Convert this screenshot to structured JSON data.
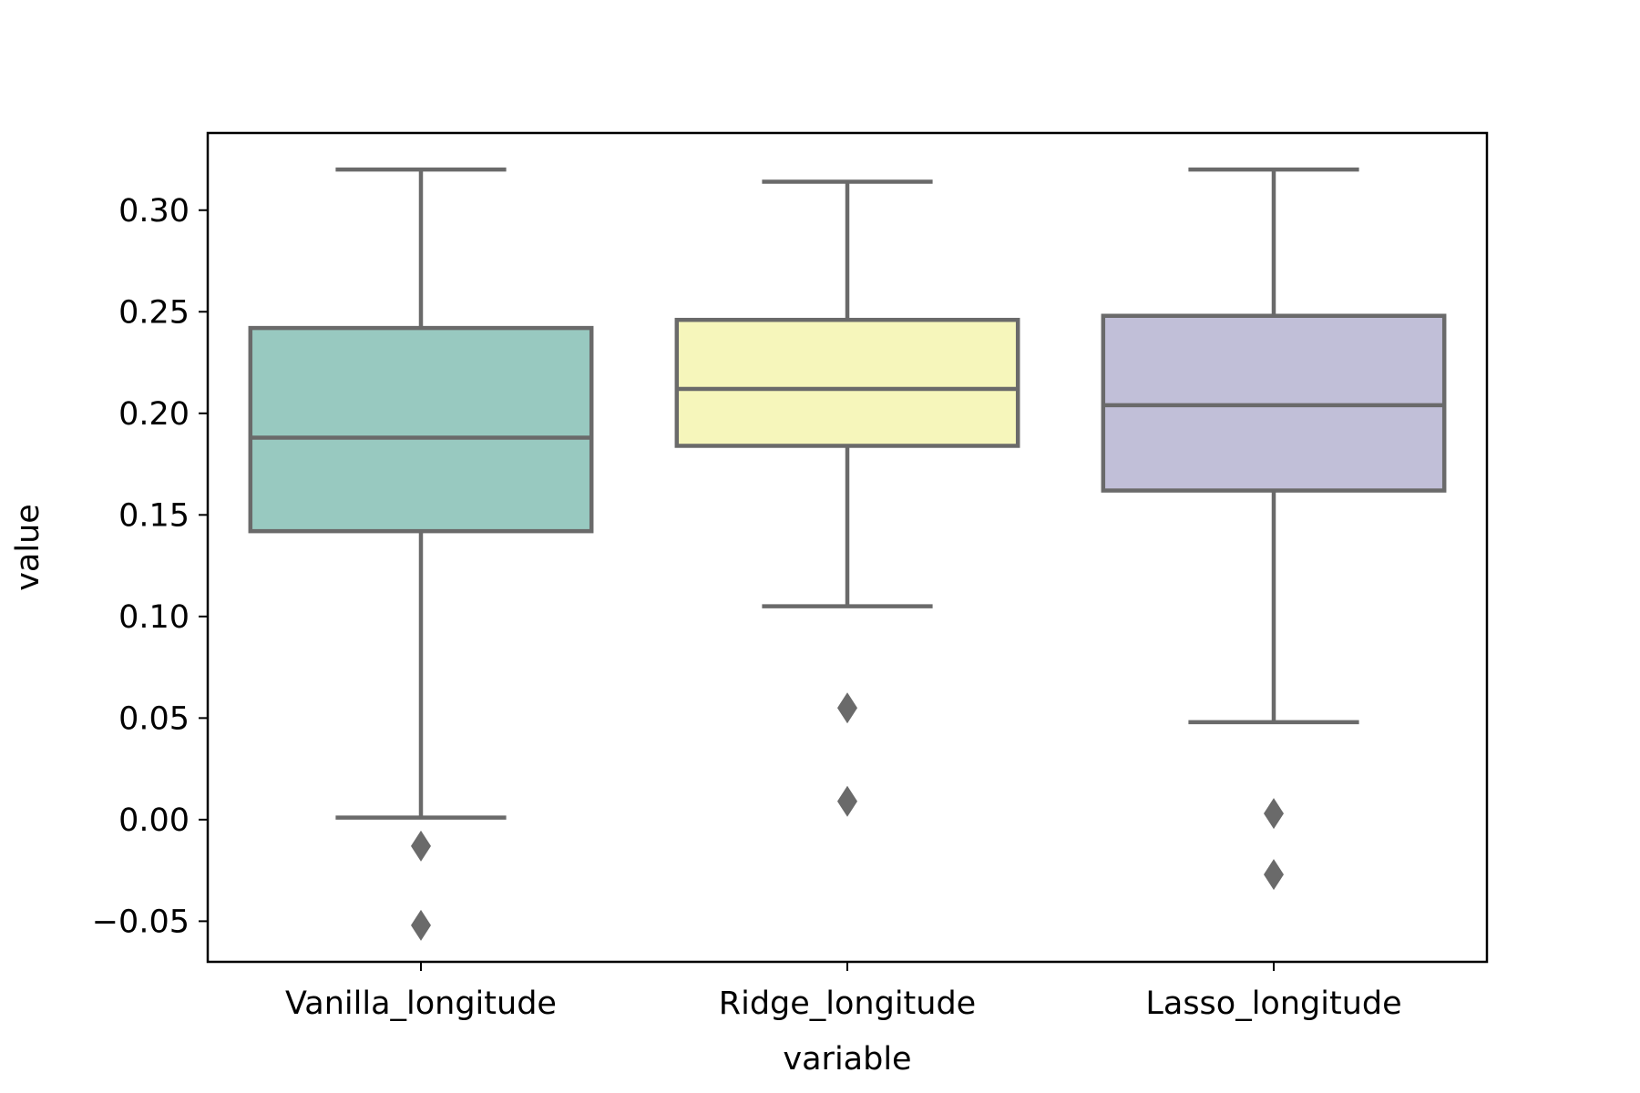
{
  "chart_data": {
    "type": "boxplot",
    "title": "",
    "xlabel": "variable",
    "ylabel": "value",
    "ylim": [
      -0.07,
      0.338
    ],
    "yticks": [
      -0.05,
      0.0,
      0.05,
      0.1,
      0.15,
      0.2,
      0.25,
      0.3
    ],
    "ytick_labels": [
      "−0.05",
      "0.00",
      "0.05",
      "0.10",
      "0.15",
      "0.20",
      "0.25",
      "0.30"
    ],
    "grid": false,
    "categories": [
      "Vanilla_longitude",
      "Ridge_longitude",
      "Lasso_longitude"
    ],
    "series": [
      {
        "category": "Vanilla_longitude",
        "color": "#98c9c0",
        "whisker_low": 0.001,
        "q1": 0.142,
        "median": 0.188,
        "q3": 0.242,
        "whisker_high": 0.32,
        "outliers": [
          -0.013,
          -0.052
        ]
      },
      {
        "category": "Ridge_longitude",
        "color": "#f6f6bb",
        "whisker_low": 0.105,
        "q1": 0.184,
        "median": 0.212,
        "q3": 0.246,
        "whisker_high": 0.314,
        "outliers": [
          0.055,
          0.009
        ]
      },
      {
        "category": "Lasso_longitude",
        "color": "#c1bfd8",
        "whisker_low": 0.048,
        "q1": 0.162,
        "median": 0.204,
        "q3": 0.248,
        "whisker_high": 0.32,
        "outliers": [
          0.003,
          -0.027
        ]
      }
    ],
    "line_color": "#6a6a6a"
  }
}
